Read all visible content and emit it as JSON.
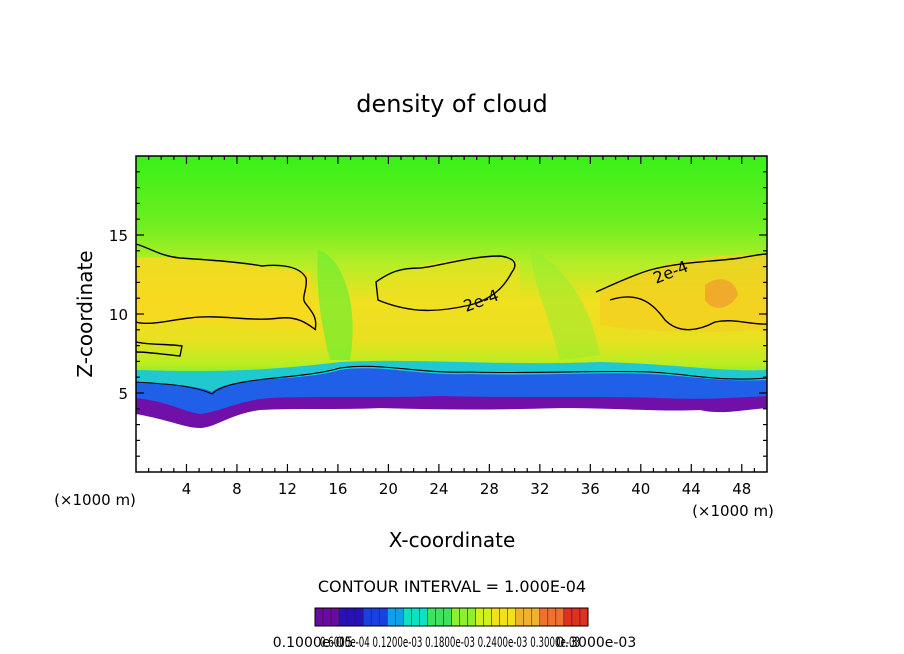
{
  "chart_data": {
    "type": "heatmap",
    "title": "density of cloud",
    "xlabel": "X-coordinate",
    "ylabel": "Z-coordinate",
    "x_unit": "(×1000 m)",
    "x_unit_right": "(×1000 m)",
    "xlim": [
      0,
      50
    ],
    "ylim": [
      0,
      20
    ],
    "x_ticks": [
      4,
      8,
      12,
      16,
      20,
      24,
      28,
      32,
      36,
      40,
      44,
      48
    ],
    "y_ticks": [
      5,
      10,
      15
    ],
    "contour_interval_text": "CONTOUR INTERVAL = 1.000E-04",
    "contour_labels": [
      {
        "text": "2e-4",
        "x": 26.5,
        "z": 10.5
      },
      {
        "text": "2e-4",
        "x": 42.0,
        "z": 12.3
      },
      {
        "text": "2e-4",
        "x": 25.8,
        "z": 10.3
      }
    ],
    "colorbar": {
      "tick_text": "0.1000e-05",
      "overlap_text": "0.6000e-04 0.1200e-03 0.1800e-03 0.2400e-03 0.3000e-03",
      "end_text": "0.3000e-03",
      "colors": [
        "#6a0aa0",
        "#2a10b8",
        "#1a40e0",
        "#10a0e8",
        "#10e0c0",
        "#40e060",
        "#90ee30",
        "#d0f020",
        "#f0e020",
        "#f0b030",
        "#f07030",
        "#e03020"
      ]
    },
    "grid": false
  }
}
